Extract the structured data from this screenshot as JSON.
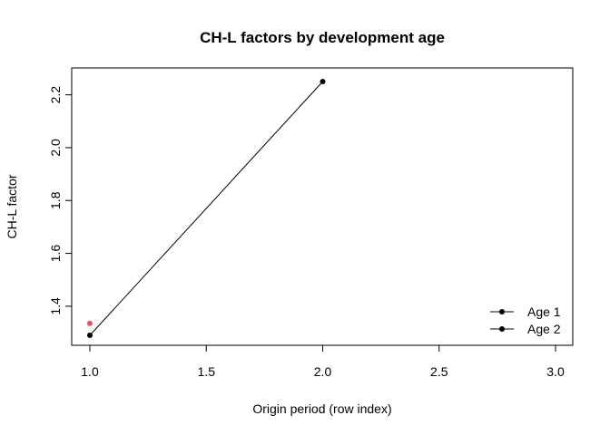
{
  "chart_data": {
    "type": "line",
    "title": "CH-L factors by development age",
    "xlabel": "Origin period (row index)",
    "ylabel": "CH-L factor",
    "xlim": [
      1.0,
      3.0
    ],
    "ylim": [
      1.29,
      2.25
    ],
    "x_ticks": [
      1.0,
      1.5,
      2.0,
      2.5,
      3.0
    ],
    "x_tick_labels": [
      "1.0",
      "1.5",
      "2.0",
      "2.5",
      "3.0"
    ],
    "y_ticks": [
      1.4,
      1.6,
      1.8,
      2.0,
      2.2
    ],
    "y_tick_labels": [
      "1.4",
      "1.6",
      "1.8",
      "2.0",
      "2.2"
    ],
    "grid": false,
    "legend_position": "bottom-right",
    "series": [
      {
        "name": "Age 1",
        "color": "#000000",
        "x": [
          1,
          2
        ],
        "y": [
          1.29,
          2.25
        ]
      },
      {
        "name": "Age 2",
        "color": "#df536b",
        "x": [
          1
        ],
        "y": [
          1.335
        ]
      }
    ],
    "legend": [
      {
        "label": "Age 1",
        "color": "#000000"
      },
      {
        "label": "Age 2",
        "color": "#000000"
      }
    ]
  }
}
